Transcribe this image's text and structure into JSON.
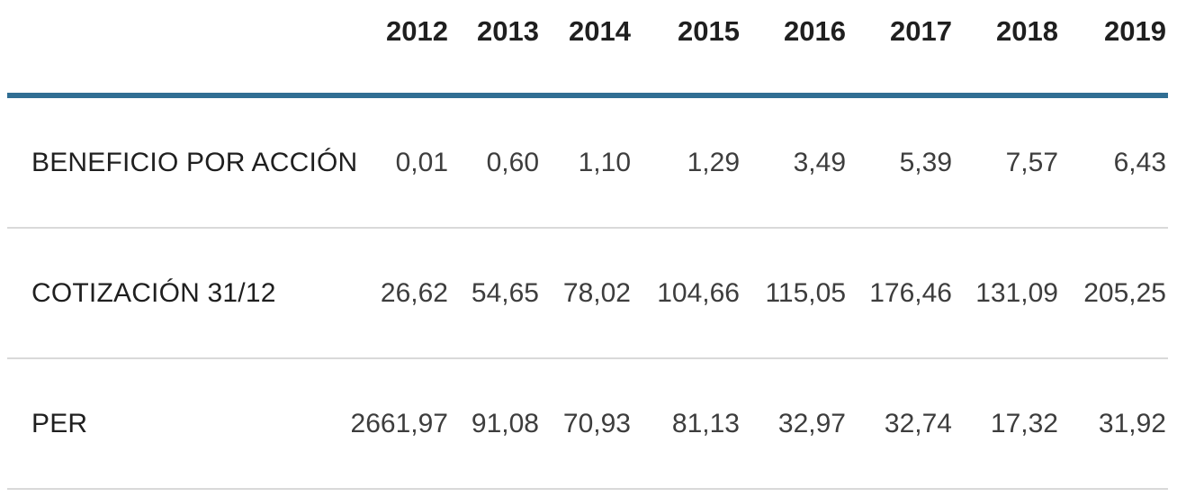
{
  "table": {
    "years": [
      "2012",
      "2013",
      "2014",
      "2015",
      "2016",
      "2017",
      "2018",
      "2019"
    ],
    "rows": [
      {
        "label": "BENEFICIO POR ACCIÓN",
        "values": [
          "0,01",
          "0,60",
          "1,10",
          "1,29",
          "3,49",
          "5,39",
          "7,57",
          "6,43"
        ]
      },
      {
        "label": "COTIZACIÓN 31/12",
        "values": [
          "26,62",
          "54,65",
          "78,02",
          "104,66",
          "115,05",
          "176,46",
          "131,09",
          "205,25"
        ]
      },
      {
        "label": "PER",
        "values": [
          "2661,97",
          "91,08",
          "70,93",
          "81,13",
          "32,97",
          "32,74",
          "17,32",
          "31,92"
        ]
      }
    ]
  },
  "colors": {
    "header_rule_blue": "#306e93",
    "row_divider_gray": "#d9d9d9",
    "label_text": "#1f1f1f",
    "value_text": "#3d3d3d",
    "background": "#ffffff"
  },
  "chart_data": {
    "type": "table",
    "columns": [
      "",
      "2012",
      "2013",
      "2014",
      "2015",
      "2016",
      "2017",
      "2018",
      "2019"
    ],
    "rows": [
      {
        "label": "BENEFICIO POR ACCIÓN",
        "values": [
          0.01,
          0.6,
          1.1,
          1.29,
          3.49,
          5.39,
          7.57,
          6.43
        ]
      },
      {
        "label": "COTIZACIÓN 31/12",
        "values": [
          26.62,
          54.65,
          78.02,
          104.66,
          115.05,
          176.46,
          131.09,
          205.25
        ]
      },
      {
        "label": "PER",
        "values": [
          2661.97,
          91.08,
          70.93,
          81.13,
          32.97,
          32.74,
          17.32,
          31.92
        ]
      }
    ],
    "decimal_separator": ",",
    "notes": "Annual per-share financial metrics table, years as columns, values right-aligned"
  }
}
